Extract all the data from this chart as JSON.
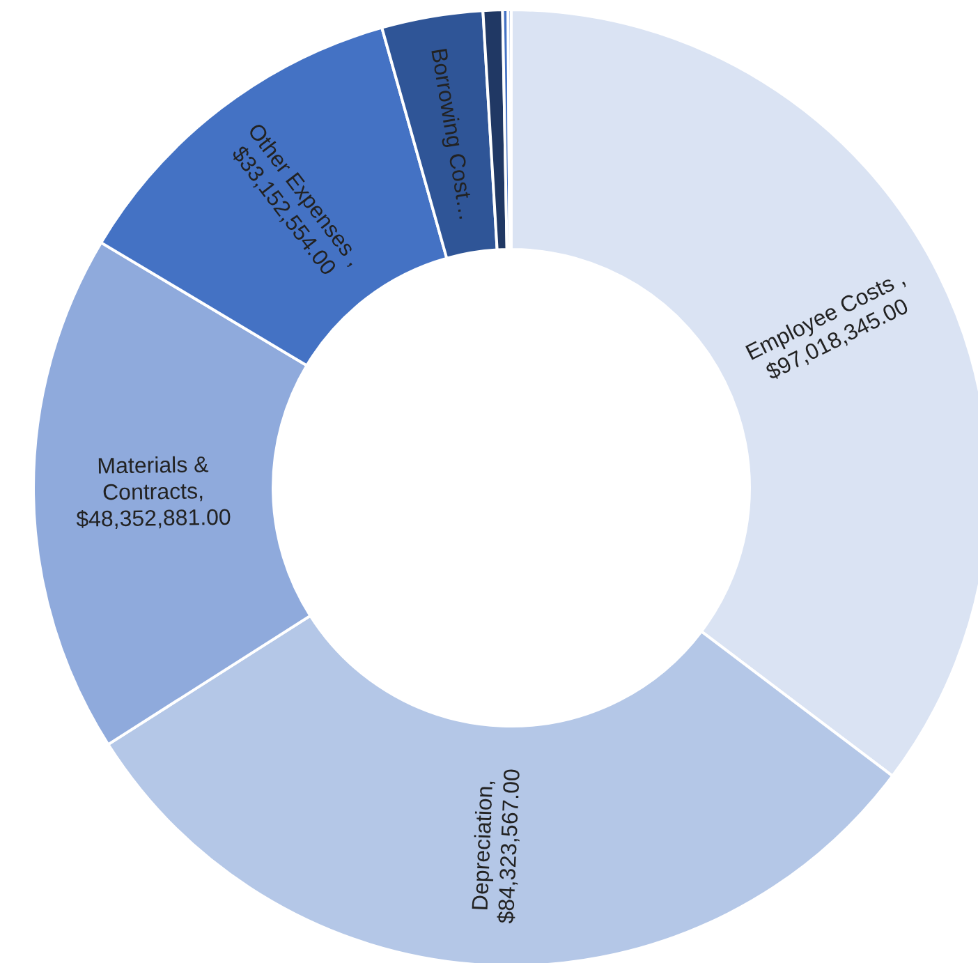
{
  "chart_data": {
    "type": "donut",
    "categories": [
      "Employee Costs ",
      "Depreciation",
      "Materials & Contracts",
      "Other Expenses ",
      "Borrowing Cost…",
      null,
      null,
      null
    ],
    "values": [
      97018345,
      84323567,
      48352881,
      33152554,
      9400000,
      1800000,
      500000,
      300000
    ],
    "value_labels": [
      ", $97,018,345.00",
      ", $84,323,567.00",
      ", $48,352,881.00",
      ", $33,152,554.00",
      null,
      null,
      null,
      null
    ],
    "colors": [
      "#dae3f3",
      "#b4c7e7",
      "#8faadc",
      "#4472c4",
      "#2f5597",
      "#203864",
      "#4472c4",
      "#8faadc"
    ]
  }
}
